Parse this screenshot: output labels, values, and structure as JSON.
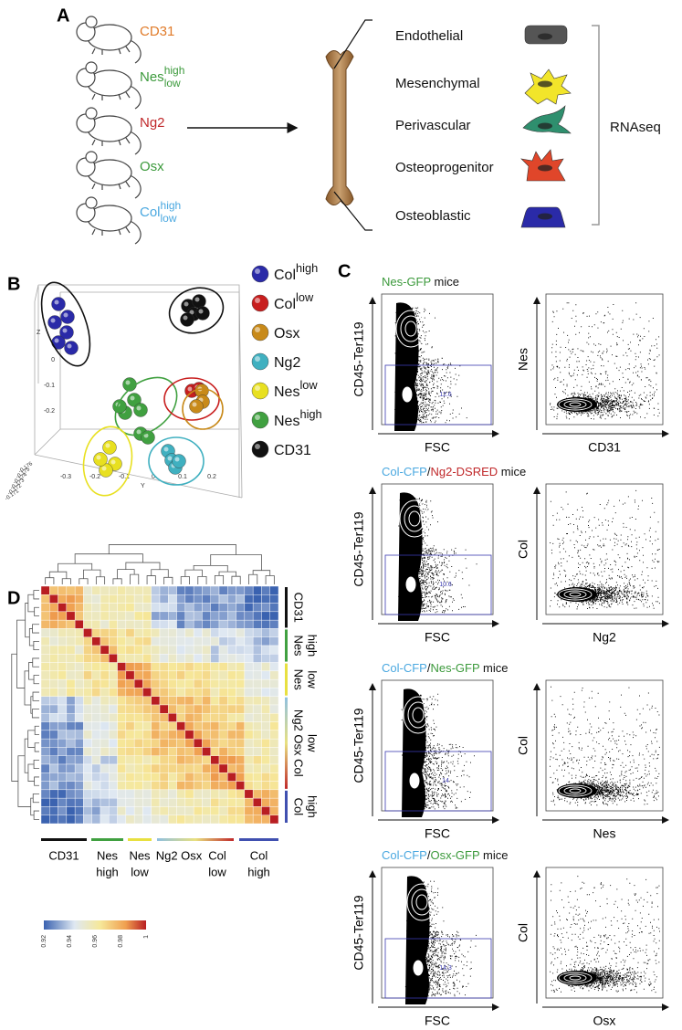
{
  "panels": {
    "A": {
      "label": "A",
      "mice": [
        {
          "name": "CD31",
          "color": "#e07b2a"
        },
        {
          "name": "Nes",
          "sup": "high",
          "sub": "low",
          "color": "#3c9a3c"
        },
        {
          "name": "Ng2",
          "color": "#c0282a"
        },
        {
          "name": "Osx",
          "color": "#3c9a3c"
        },
        {
          "name": "Col",
          "sup": "high",
          "sub": "low",
          "color": "#4aa8e0"
        }
      ],
      "cell_types": [
        {
          "name": "Endothelial",
          "color": "#555555"
        },
        {
          "name": "Mesenchymal",
          "color": "#f2e52a"
        },
        {
          "name": "Perivascular",
          "color": "#2f8f6e"
        },
        {
          "name": "Osteoprogenitor",
          "color": "#e0462a"
        },
        {
          "name": "Osteoblastic",
          "color": "#2a2aa8"
        }
      ],
      "method": "RNAseq"
    },
    "B": {
      "label": "B",
      "axis_labels": {
        "z": "Z",
        "y": "Y"
      },
      "z_ticks": [
        "0",
        "-0.1",
        "-0.2"
      ],
      "y_ticks": [
        "-0.3",
        "-0.2",
        "-0.1",
        "0",
        "0.1",
        "0.2"
      ],
      "x_ticks": [
        "-0.176",
        "-0.175",
        "-0.174",
        "-0.173",
        "-0.172",
        "-0.171"
      ],
      "legend": [
        {
          "name": "Col",
          "sup": "high",
          "color": "#2a2aa8"
        },
        {
          "name": "Col",
          "sup": "low",
          "color": "#c81e1e"
        },
        {
          "name": "Osx",
          "color": "#c88a1a"
        },
        {
          "name": "Ng2",
          "color": "#40b0c0"
        },
        {
          "name": "Nes",
          "sup": "low",
          "color": "#e8e020"
        },
        {
          "name": "Nes",
          "sup": "high",
          "color": "#40a040"
        },
        {
          "name": "CD31",
          "color": "#111111"
        }
      ]
    },
    "C": {
      "label": "C",
      "rows": [
        {
          "title": [
            {
              "text": "Nes-GFP",
              "color": "#3c9a3c"
            },
            {
              "text": " mice",
              "color": "#111111"
            }
          ],
          "left": {
            "y_label": "CD45-Ter119",
            "x_label": "FSC",
            "gate": "12.6"
          },
          "right": {
            "y_label": "Nes",
            "x_label": "CD31"
          }
        },
        {
          "title": [
            {
              "text": "Col-CFP",
              "color": "#4aa8e0"
            },
            {
              "text": "/",
              "color": "#111111"
            },
            {
              "text": "Ng2-DSRED",
              "color": "#c0282a"
            },
            {
              "text": " mice",
              "color": "#111111"
            }
          ],
          "left": {
            "y_label": "CD45-Ter119",
            "x_label": "FSC",
            "gate": "10.6"
          },
          "right": {
            "y_label": "Col",
            "x_label": "Ng2"
          }
        },
        {
          "title": [
            {
              "text": "Col-CFP",
              "color": "#4aa8e0"
            },
            {
              "text": "/",
              "color": "#111111"
            },
            {
              "text": "Nes-GFP",
              "color": "#3c9a3c"
            },
            {
              "text": " mice",
              "color": "#111111"
            }
          ],
          "left": {
            "y_label": "CD45-Ter119",
            "x_label": "FSC",
            "gate": "14"
          },
          "right": {
            "y_label": "Col",
            "x_label": "Nes"
          }
        },
        {
          "title": [
            {
              "text": "Col-CFP",
              "color": "#4aa8e0"
            },
            {
              "text": "/",
              "color": "#111111"
            },
            {
              "text": "Osx-GFP",
              "color": "#3c9a3c"
            },
            {
              "text": " mice",
              "color": "#111111"
            }
          ],
          "left": {
            "y_label": "CD45-Ter119",
            "x_label": "FSC",
            "gate": "14.3"
          },
          "right": {
            "y_label": "Col",
            "x_label": "Osx"
          }
        }
      ]
    },
    "D": {
      "label": "D",
      "row_groups": [
        {
          "lines": [
            "CD31"
          ],
          "color": "#111111"
        },
        {
          "lines": [
            "Nes",
            "high"
          ],
          "color": "#40a040"
        },
        {
          "lines": [
            "Nes",
            "low"
          ],
          "color": "#e8e040"
        },
        {
          "lines": [
            "Ng2 Osx Col",
            "low"
          ],
          "color": "#c0282a"
        },
        {
          "lines": [
            "Col",
            "high"
          ],
          "color": "#4050b0"
        }
      ],
      "col_groups": [
        {
          "lines": [
            "CD31"
          ],
          "color": "#111111"
        },
        {
          "lines": [
            "Nes",
            "high"
          ],
          "color": "#40a040"
        },
        {
          "lines": [
            "Nes",
            "low"
          ],
          "color": "#e8e040"
        },
        {
          "lines": [
            "Ng2 Osx"
          ],
          "color": "#8fc0e0"
        },
        {
          "lines": [
            "Col",
            "low"
          ],
          "color": "#c0282a"
        },
        {
          "lines": [
            "Col",
            "high"
          ],
          "color": "#4050b0"
        }
      ],
      "colorbar_ticks": [
        "0.92",
        "0.94",
        "0.96",
        "0.98",
        "1"
      ]
    }
  }
}
